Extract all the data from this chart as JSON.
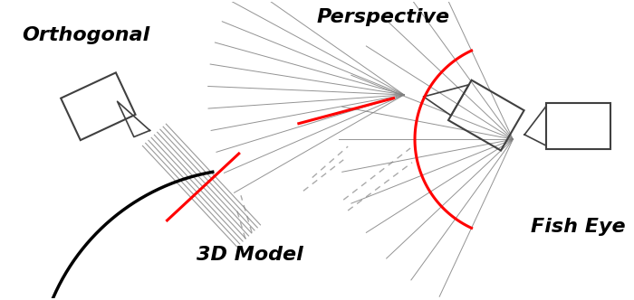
{
  "bg_color": "#ffffff",
  "title_orthogonal": "Orthogonal",
  "title_perspective": "Perspective",
  "title_fisheye": "Fish Eye",
  "title_3dmodel": "3D Model",
  "line_color": "#404040",
  "ray_color": "#808080",
  "red_color": "#ff0000",
  "dashed_color": "#aaaaaa",
  "sphere_color": "#000000",
  "fig_w": 7.0,
  "fig_h": 3.32,
  "dpi": 100,
  "xlim": [
    0,
    700
  ],
  "ylim": [
    0,
    332
  ]
}
